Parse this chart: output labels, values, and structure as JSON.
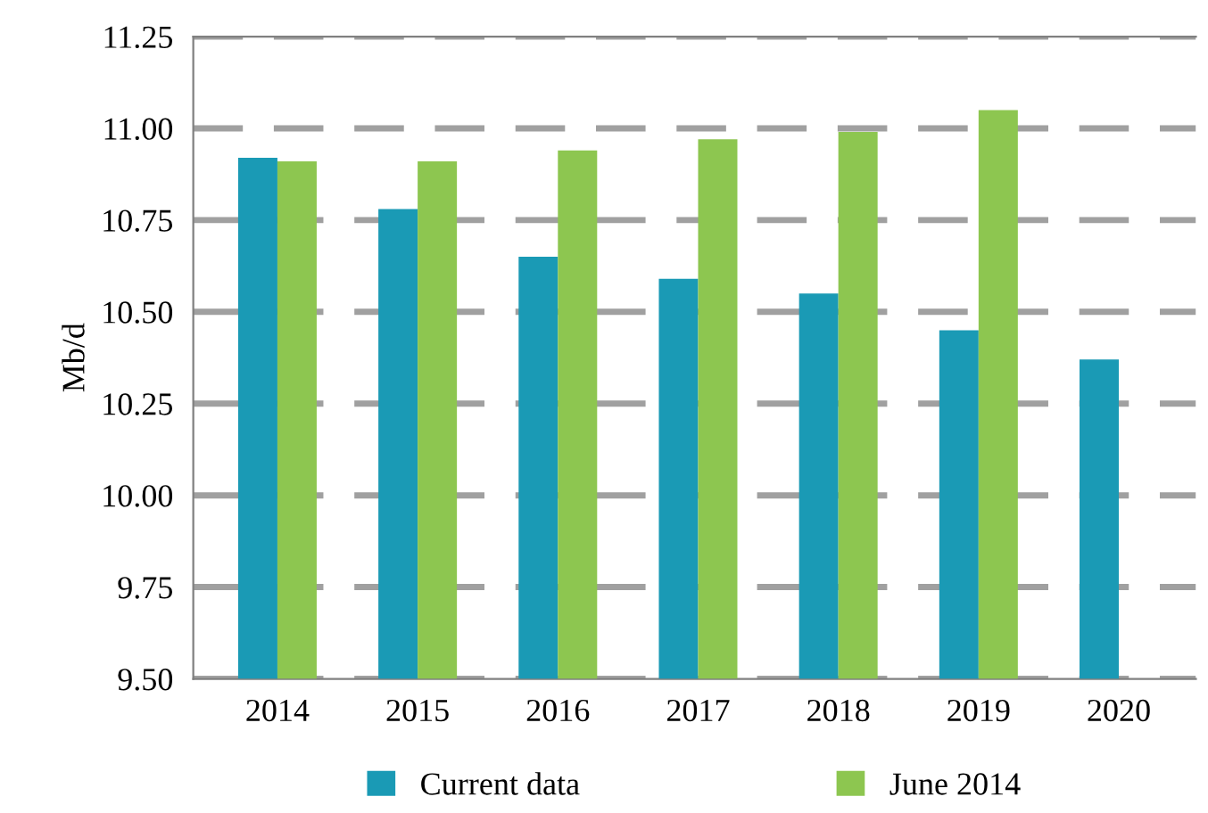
{
  "chart_data": {
    "type": "bar",
    "ylabel": "Mb/d",
    "categories": [
      "2014",
      "2015",
      "2016",
      "2017",
      "2018",
      "2019",
      "2020"
    ],
    "series": [
      {
        "name": "Current data",
        "color": "#1a9ab5",
        "values": [
          10.92,
          10.78,
          10.65,
          10.59,
          10.55,
          10.45,
          10.37
        ]
      },
      {
        "name": "June 2014",
        "color": "#8dc650",
        "values": [
          10.91,
          10.91,
          10.94,
          10.97,
          10.99,
          11.05,
          null
        ]
      }
    ],
    "ylim": [
      9.5,
      11.25
    ],
    "yticks": [
      {
        "value": 9.5,
        "label": "9.50"
      },
      {
        "value": 9.75,
        "label": "9.75"
      },
      {
        "value": 10.0,
        "label": "10.00"
      },
      {
        "value": 10.25,
        "label": "10.25"
      },
      {
        "value": 10.5,
        "label": "10.50"
      },
      {
        "value": 10.75,
        "label": "10.75"
      },
      {
        "value": 11.0,
        "label": "11.00"
      },
      {
        "value": 11.25,
        "label": "11.25"
      }
    ],
    "grid": "y",
    "legend": "bottom"
  }
}
